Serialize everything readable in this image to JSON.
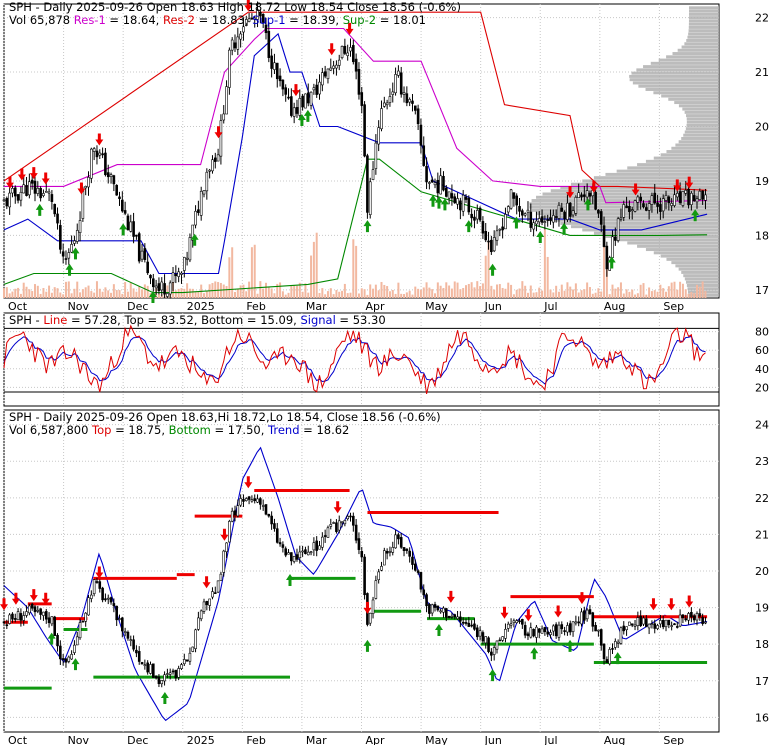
{
  "chart_data": [
    {
      "type": "candlestick",
      "panel": "price-volume",
      "header": {
        "line1_parts": [
          {
            "text": "SPH - Daily 2025-09-26 Open 18.63  High 18.72  Low 18.54  Close 18.56 (-0.6%)",
            "color": "#000000"
          }
        ],
        "line2_parts": [
          {
            "text": "Vol 65,878 ",
            "color": "#000000"
          },
          {
            "text": "Res-1",
            "color": "#cc00cc"
          },
          {
            "text": " = 18.64, ",
            "color": "#000000"
          },
          {
            "text": "Res-2",
            "color": "#dd0000"
          },
          {
            "text": " = 18.83, ",
            "color": "#000000"
          },
          {
            "text": "Sup-1",
            "color": "#0000cc"
          },
          {
            "text": " = 18.39, ",
            "color": "#000000"
          },
          {
            "text": "Sup-2",
            "color": "#008800"
          },
          {
            "text": " = 18.01",
            "color": "#000000"
          }
        ]
      },
      "x_labels": [
        "Oct",
        "Nov",
        "Dec",
        "2025",
        "Feb",
        "Mar",
        "Apr",
        "May",
        "Jun",
        "Jul",
        "Aug",
        "Sep"
      ],
      "x_label_positions_month": [
        0,
        1,
        2,
        3,
        4,
        5,
        6,
        7,
        8,
        9,
        10,
        11
      ],
      "y_ticks": [
        17,
        18,
        19,
        20,
        21,
        22
      ],
      "ylim": [
        16.85,
        22.25
      ],
      "months": 12,
      "close_by_month_start": [
        18.6,
        18.1,
        19.8,
        17.0,
        21.5,
        20.8,
        20.5,
        19.0,
        18.0,
        18.6,
        17.8,
        18.6
      ],
      "close_anchors": [
        [
          0.0,
          18.6
        ],
        [
          0.4,
          18.9
        ],
        [
          0.8,
          18.7
        ],
        [
          1.0,
          17.4
        ],
        [
          1.2,
          18.0
        ],
        [
          1.5,
          19.7
        ],
        [
          1.8,
          19.0
        ],
        [
          2.3,
          17.6
        ],
        [
          2.6,
          17.0
        ],
        [
          3.0,
          17.3
        ],
        [
          3.4,
          19.2
        ],
        [
          3.6,
          19.6
        ],
        [
          3.8,
          21.4
        ],
        [
          4.0,
          21.9
        ],
        [
          4.3,
          22.0
        ],
        [
          4.6,
          20.8
        ],
        [
          4.8,
          20.3
        ],
        [
          5.2,
          20.6
        ],
        [
          5.4,
          21.0
        ],
        [
          5.8,
          21.5
        ],
        [
          6.0,
          20.5
        ],
        [
          6.1,
          18.5
        ],
        [
          6.3,
          20.2
        ],
        [
          6.6,
          20.9
        ],
        [
          6.9,
          20.2
        ],
        [
          7.1,
          19.0
        ],
        [
          7.4,
          18.9
        ],
        [
          7.7,
          18.6
        ],
        [
          8.0,
          18.3
        ],
        [
          8.2,
          17.7
        ],
        [
          8.5,
          18.7
        ],
        [
          8.8,
          18.3
        ],
        [
          9.1,
          18.3
        ],
        [
          9.5,
          18.5
        ],
        [
          9.8,
          18.9
        ],
        [
          10.0,
          18.3
        ],
        [
          10.1,
          17.5
        ],
        [
          10.4,
          18.5
        ],
        [
          10.8,
          18.6
        ],
        [
          11.2,
          18.6
        ],
        [
          11.6,
          18.7
        ],
        [
          11.8,
          18.56
        ]
      ],
      "res1_anchors": [
        [
          0,
          18.9
        ],
        [
          0.8,
          18.9
        ],
        [
          1.0,
          18.9
        ],
        [
          1.9,
          19.3
        ],
        [
          2.4,
          19.3
        ],
        [
          2.7,
          19.3
        ],
        [
          3.1,
          19.3
        ],
        [
          3.3,
          19.3
        ],
        [
          3.7,
          21.0
        ],
        [
          4.2,
          21.6
        ],
        [
          4.4,
          21.8
        ],
        [
          5.6,
          21.8
        ],
        [
          5.7,
          21.8
        ],
        [
          6.2,
          21.2
        ],
        [
          7.0,
          21.2
        ],
        [
          7.6,
          19.6
        ],
        [
          8.2,
          19.0
        ],
        [
          9.0,
          18.9
        ],
        [
          10.0,
          18.9
        ],
        [
          10.1,
          18.6
        ],
        [
          11.8,
          18.64
        ]
      ],
      "res2_anchors": [
        [
          0,
          19.0
        ],
        [
          4.1,
          22.1
        ],
        [
          4.2,
          22.1
        ],
        [
          5.0,
          22.1
        ],
        [
          6.1,
          22.1
        ],
        [
          7.0,
          22.1
        ],
        [
          8.0,
          22.1
        ],
        [
          8.4,
          20.4
        ],
        [
          9.5,
          20.2
        ],
        [
          9.7,
          19.2
        ],
        [
          10.0,
          18.9
        ],
        [
          10.3,
          18.9
        ],
        [
          11.8,
          18.83
        ]
      ],
      "sup1_anchors": [
        [
          0,
          18.1
        ],
        [
          0.4,
          18.3
        ],
        [
          0.9,
          17.9
        ],
        [
          1.3,
          17.9
        ],
        [
          2.3,
          17.9
        ],
        [
          2.6,
          17.3
        ],
        [
          3.2,
          17.3
        ],
        [
          3.6,
          17.3
        ],
        [
          3.7,
          17.9
        ],
        [
          4.0,
          19.8
        ],
        [
          4.2,
          21.3
        ],
        [
          4.6,
          21.7
        ],
        [
          4.8,
          21.0
        ],
        [
          5.0,
          21.0
        ],
        [
          5.3,
          20.0
        ],
        [
          5.6,
          20.0
        ],
        [
          6.3,
          19.7
        ],
        [
          7.0,
          19.7
        ],
        [
          7.2,
          19.0
        ],
        [
          8.6,
          18.3
        ],
        [
          9.5,
          18.3
        ],
        [
          10.0,
          18.1
        ],
        [
          10.7,
          18.1
        ],
        [
          11.8,
          18.39
        ]
      ],
      "sup2_anchors": [
        [
          0,
          17.1
        ],
        [
          0.5,
          17.3
        ],
        [
          1.1,
          17.3
        ],
        [
          1.8,
          17.3
        ],
        [
          2.5,
          16.95
        ],
        [
          3.0,
          16.95
        ],
        [
          5.1,
          17.1
        ],
        [
          5.6,
          17.2
        ],
        [
          6.1,
          19.4
        ],
        [
          6.3,
          19.4
        ],
        [
          7.0,
          18.8
        ],
        [
          9.5,
          18.0
        ],
        [
          11.0,
          18.0
        ],
        [
          11.8,
          18.01
        ]
      ],
      "volume_spikes_month": [
        3.8,
        5.2,
        5.9,
        4.2,
        8.1,
        9.1,
        10.1
      ],
      "buy_arrows_month": [
        0.6,
        1.1,
        1.2,
        2.0,
        2.5,
        3.2,
        5.0,
        5.1,
        6.1,
        7.2,
        7.3,
        7.4,
        7.8,
        8.2,
        8.6,
        9.0,
        9.4,
        9.8,
        10.2,
        11.6
      ],
      "sell_arrows_month": [
        0.1,
        0.3,
        0.5,
        0.7,
        1.3,
        1.6,
        3.6,
        4.1,
        4.9,
        5.5,
        5.8,
        9.5,
        9.9,
        10.6,
        11.3,
        11.5
      ]
    },
    {
      "type": "line",
      "panel": "stochastic",
      "header_parts": [
        {
          "text": "SPH - ",
          "color": "#000000"
        },
        {
          "text": "Line",
          "color": "#dd0000"
        },
        {
          "text": " = 57.28, Top = 83.52, Bottom = 15.09, ",
          "color": "#000000"
        },
        {
          "text": "Signal",
          "color": "#0000cc"
        },
        {
          "text": " = 53.30",
          "color": "#000000"
        }
      ],
      "y_ticks": [
        20,
        40,
        60,
        80
      ],
      "ylim": [
        0,
        100
      ],
      "top": 83.52,
      "bottom": 15.09,
      "line": 57.28,
      "signal": 53.3
    },
    {
      "type": "candlestick",
      "panel": "trend",
      "header": {
        "line1_parts": [
          {
            "text": "SPH - Daily 2025-09-26 Open 18.63,Hi 18.72,Lo 18.54,  Close 18.56 (-0.6%)",
            "color": "#000000"
          }
        ],
        "line2_parts": [
          {
            "text": "Vol 6,587,800 ",
            "color": "#000000"
          },
          {
            "text": "Top",
            "color": "#dd0000"
          },
          {
            "text": " = 18.75, ",
            "color": "#000000"
          },
          {
            "text": "Bottom",
            "color": "#008800"
          },
          {
            "text": " = 17.50, ",
            "color": "#000000"
          },
          {
            "text": "Trend",
            "color": "#0000cc"
          },
          {
            "text": " = 18.62",
            "color": "#000000"
          }
        ]
      },
      "y_ticks": [
        16,
        17,
        18,
        19,
        20,
        21,
        22,
        23,
        24
      ],
      "ylim": [
        15.6,
        24.4
      ],
      "red_segments_month": [
        [
          0.0,
          0.4,
          18.6
        ],
        [
          0.4,
          0.8,
          19.1
        ],
        [
          0.8,
          1.4,
          18.7
        ],
        [
          1.5,
          2.9,
          19.8
        ],
        [
          2.9,
          3.2,
          19.9
        ],
        [
          3.2,
          4.0,
          21.5
        ],
        [
          4.2,
          5.8,
          22.2
        ],
        [
          6.1,
          8.3,
          21.6
        ],
        [
          8.5,
          9.9,
          19.3
        ],
        [
          9.9,
          11.8,
          18.75
        ]
      ],
      "green_segments_month": [
        [
          0.0,
          0.8,
          16.8
        ],
        [
          1.0,
          1.4,
          18.4
        ],
        [
          1.5,
          2.2,
          17.1
        ],
        [
          2.2,
          4.8,
          17.1
        ],
        [
          4.8,
          5.9,
          19.8
        ],
        [
          6.2,
          7.0,
          18.9
        ],
        [
          7.1,
          7.9,
          18.7
        ],
        [
          8.0,
          9.9,
          18.0
        ],
        [
          9.9,
          11.8,
          17.5
        ]
      ],
      "trend_anchors": [
        [
          0.0,
          19.6
        ],
        [
          0.4,
          19.0
        ],
        [
          0.7,
          18.2
        ],
        [
          1.0,
          17.5
        ],
        [
          1.3,
          18.7
        ],
        [
          1.6,
          20.5
        ],
        [
          1.9,
          18.8
        ],
        [
          2.2,
          17.3
        ],
        [
          2.7,
          15.9
        ],
        [
          3.1,
          16.4
        ],
        [
          3.6,
          19.2
        ],
        [
          4.0,
          22.5
        ],
        [
          4.3,
          23.4
        ],
        [
          4.6,
          22.0
        ],
        [
          4.9,
          20.4
        ],
        [
          5.2,
          19.9
        ],
        [
          5.6,
          21.0
        ],
        [
          6.0,
          22.3
        ],
        [
          6.2,
          21.3
        ],
        [
          6.5,
          21.2
        ],
        [
          6.8,
          20.9
        ],
        [
          7.1,
          19.1
        ],
        [
          7.5,
          18.9
        ],
        [
          7.8,
          18.3
        ],
        [
          8.1,
          17.7
        ],
        [
          8.3,
          16.9
        ],
        [
          8.6,
          18.6
        ],
        [
          8.9,
          19.2
        ],
        [
          9.2,
          18.1
        ],
        [
          9.6,
          17.8
        ],
        [
          9.9,
          19.8
        ],
        [
          10.1,
          19.3
        ],
        [
          10.4,
          18.1
        ],
        [
          10.8,
          18.5
        ],
        [
          11.1,
          18.8
        ],
        [
          11.4,
          18.5
        ],
        [
          11.8,
          18.62
        ]
      ],
      "buy_arrows_month": [
        0.8,
        1.2,
        2.7,
        4.8,
        6.1,
        7.3,
        8.2,
        8.9,
        9.5,
        10.3
      ],
      "sell_arrows_month": [
        0.0,
        0.2,
        0.5,
        0.7,
        1.6,
        3.4,
        3.7,
        4.1,
        5.6,
        6.1,
        7.5,
        8.4,
        8.8,
        9.3,
        9.7,
        10.9,
        11.2,
        11.5
      ]
    }
  ]
}
